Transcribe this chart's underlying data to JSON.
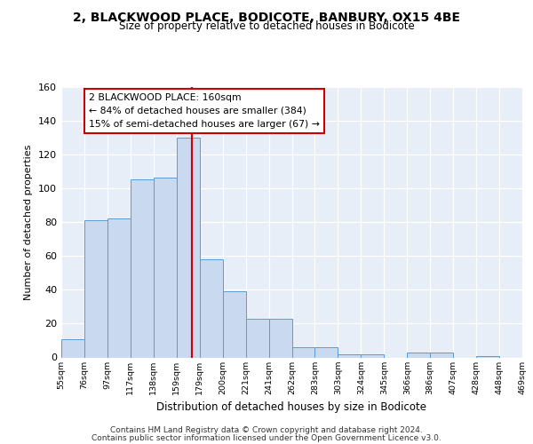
{
  "title": "2, BLACKWOOD PLACE, BODICOTE, BANBURY, OX15 4BE",
  "subtitle": "Size of property relative to detached houses in Bodicote",
  "xlabel": "Distribution of detached houses by size in Bodicote",
  "ylabel": "Number of detached properties",
  "bar_color": "#c8d9f0",
  "bar_edge_color": "#5b9bd5",
  "background_color": "#e8eef8",
  "grid_color": "#ffffff",
  "bin_labels": [
    "55sqm",
    "76sqm",
    "97sqm",
    "117sqm",
    "138sqm",
    "159sqm",
    "179sqm",
    "200sqm",
    "221sqm",
    "241sqm",
    "262sqm",
    "283sqm",
    "303sqm",
    "324sqm",
    "345sqm",
    "366sqm",
    "386sqm",
    "407sqm",
    "428sqm",
    "448sqm",
    "469sqm"
  ],
  "bar_heights": [
    11,
    81,
    82,
    105,
    106,
    130,
    58,
    39,
    23,
    23,
    6,
    6,
    2,
    2,
    0,
    3,
    3,
    0,
    1,
    0
  ],
  "vline_color": "#cc0000",
  "vline_position": 5.65,
  "annotation_line1": "2 BLACKWOOD PLACE: 160sqm",
  "annotation_line2": "← 84% of detached houses are smaller (384)",
  "annotation_line3": "15% of semi-detached houses are larger (67) →",
  "annotation_box_color": "#ffffff",
  "annotation_box_edge": "#cc0000",
  "ylim": [
    0,
    160
  ],
  "yticks": [
    0,
    20,
    40,
    60,
    80,
    100,
    120,
    140,
    160
  ],
  "footer_line1": "Contains HM Land Registry data © Crown copyright and database right 2024.",
  "footer_line2": "Contains public sector information licensed under the Open Government Licence v3.0."
}
